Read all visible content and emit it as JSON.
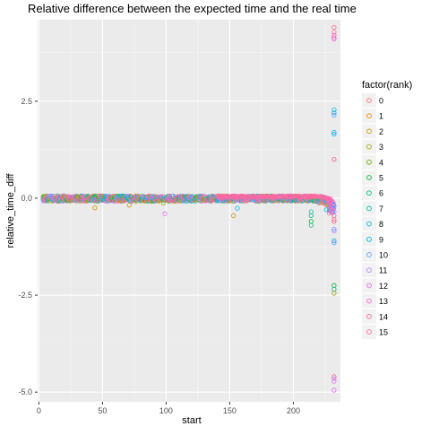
{
  "chart_data": {
    "type": "scatter",
    "title": "Relative difference between the expected time and the real time",
    "xlabel": "start",
    "ylabel": "relative_time_diff",
    "xlim": [
      -1,
      237
    ],
    "ylim": [
      -5.25,
      4.6
    ],
    "x_ticks": [
      0,
      50,
      100,
      150,
      200
    ],
    "x_tick_labels": [
      "0",
      "50",
      "100",
      "150",
      "200"
    ],
    "y_ticks": [
      -5.0,
      -2.5,
      0.0,
      2.5
    ],
    "y_tick_labels": [
      "-5.0",
      "-2.5",
      "0.0",
      "2.5"
    ],
    "grid": true,
    "legend": {
      "title": "factor(rank)",
      "position": "right",
      "entries": [
        "0",
        "1",
        "2",
        "3",
        "4",
        "5",
        "6",
        "7",
        "8",
        "9",
        "10",
        "11",
        "12",
        "13",
        "14",
        "15"
      ]
    },
    "colors": [
      "#F8766D",
      "#E58700",
      "#C99800",
      "#A3A500",
      "#6BB100",
      "#00BA38",
      "#00BF7D",
      "#00C0AF",
      "#00BCD8",
      "#00B0F6",
      "#619CFF",
      "#B983FF",
      "#E76BF3",
      "#FD61D1",
      "#FF67A4",
      "#FF6C91"
    ],
    "baseline": {
      "x_range": [
        3,
        228
      ],
      "note_value_range": [
        -0.08,
        0.06
      ]
    },
    "outliers": [
      {
        "rank": 2,
        "x": 44,
        "y": -0.25
      },
      {
        "rank": 2,
        "x": 71,
        "y": -0.18
      },
      {
        "rank": 3,
        "x": 98,
        "y": -0.12
      },
      {
        "rank": 12,
        "x": 99,
        "y": -0.4
      },
      {
        "rank": 2,
        "x": 153,
        "y": -0.45
      },
      {
        "rank": 9,
        "x": 156,
        "y": -0.26
      },
      {
        "rank": 7,
        "x": 214,
        "y": -0.35
      },
      {
        "rank": 6,
        "x": 214,
        "y": -0.45
      },
      {
        "rank": 5,
        "x": 214,
        "y": -0.6
      },
      {
        "rank": 6,
        "x": 214,
        "y": -0.7
      },
      {
        "rank": 8,
        "x": 226,
        "y": -0.3
      },
      {
        "rank": 15,
        "x": 232,
        "y": 4.4
      },
      {
        "rank": 15,
        "x": 232,
        "y": 4.28
      },
      {
        "rank": 13,
        "x": 232,
        "y": 4.2
      },
      {
        "rank": 14,
        "x": 232,
        "y": 4.14
      },
      {
        "rank": 12,
        "x": 232,
        "y": 4.1
      },
      {
        "rank": 8,
        "x": 232,
        "y": 2.28
      },
      {
        "rank": 9,
        "x": 232,
        "y": 2.2
      },
      {
        "rank": 10,
        "x": 232,
        "y": 2.14
      },
      {
        "rank": 9,
        "x": 232,
        "y": 1.7
      },
      {
        "rank": 9,
        "x": 232,
        "y": 1.65
      },
      {
        "rank": 13,
        "x": 232,
        "y": 1.0
      },
      {
        "rank": 14,
        "x": 232,
        "y": 1.0
      },
      {
        "rank": 11,
        "x": 232,
        "y": -0.2
      },
      {
        "rank": 12,
        "x": 232,
        "y": -0.35
      },
      {
        "rank": 14,
        "x": 232,
        "y": -0.45
      },
      {
        "rank": 15,
        "x": 232,
        "y": -0.55
      },
      {
        "rank": 15,
        "x": 232,
        "y": -0.6
      },
      {
        "rank": 10,
        "x": 232,
        "y": -0.8
      },
      {
        "rank": 11,
        "x": 232,
        "y": -0.85
      },
      {
        "rank": 9,
        "x": 232,
        "y": -1.1
      },
      {
        "rank": 10,
        "x": 232,
        "y": -1.15
      },
      {
        "rank": 5,
        "x": 232,
        "y": -2.25
      },
      {
        "rank": 6,
        "x": 232,
        "y": -2.35
      },
      {
        "rank": 3,
        "x": 232,
        "y": -2.45
      },
      {
        "rank": 11,
        "x": 232,
        "y": -4.65
      },
      {
        "rank": 12,
        "x": 232,
        "y": -4.72
      },
      {
        "rank": 14,
        "x": 232,
        "y": -4.6
      },
      {
        "rank": 12,
        "x": 232,
        "y": -4.95
      }
    ]
  }
}
